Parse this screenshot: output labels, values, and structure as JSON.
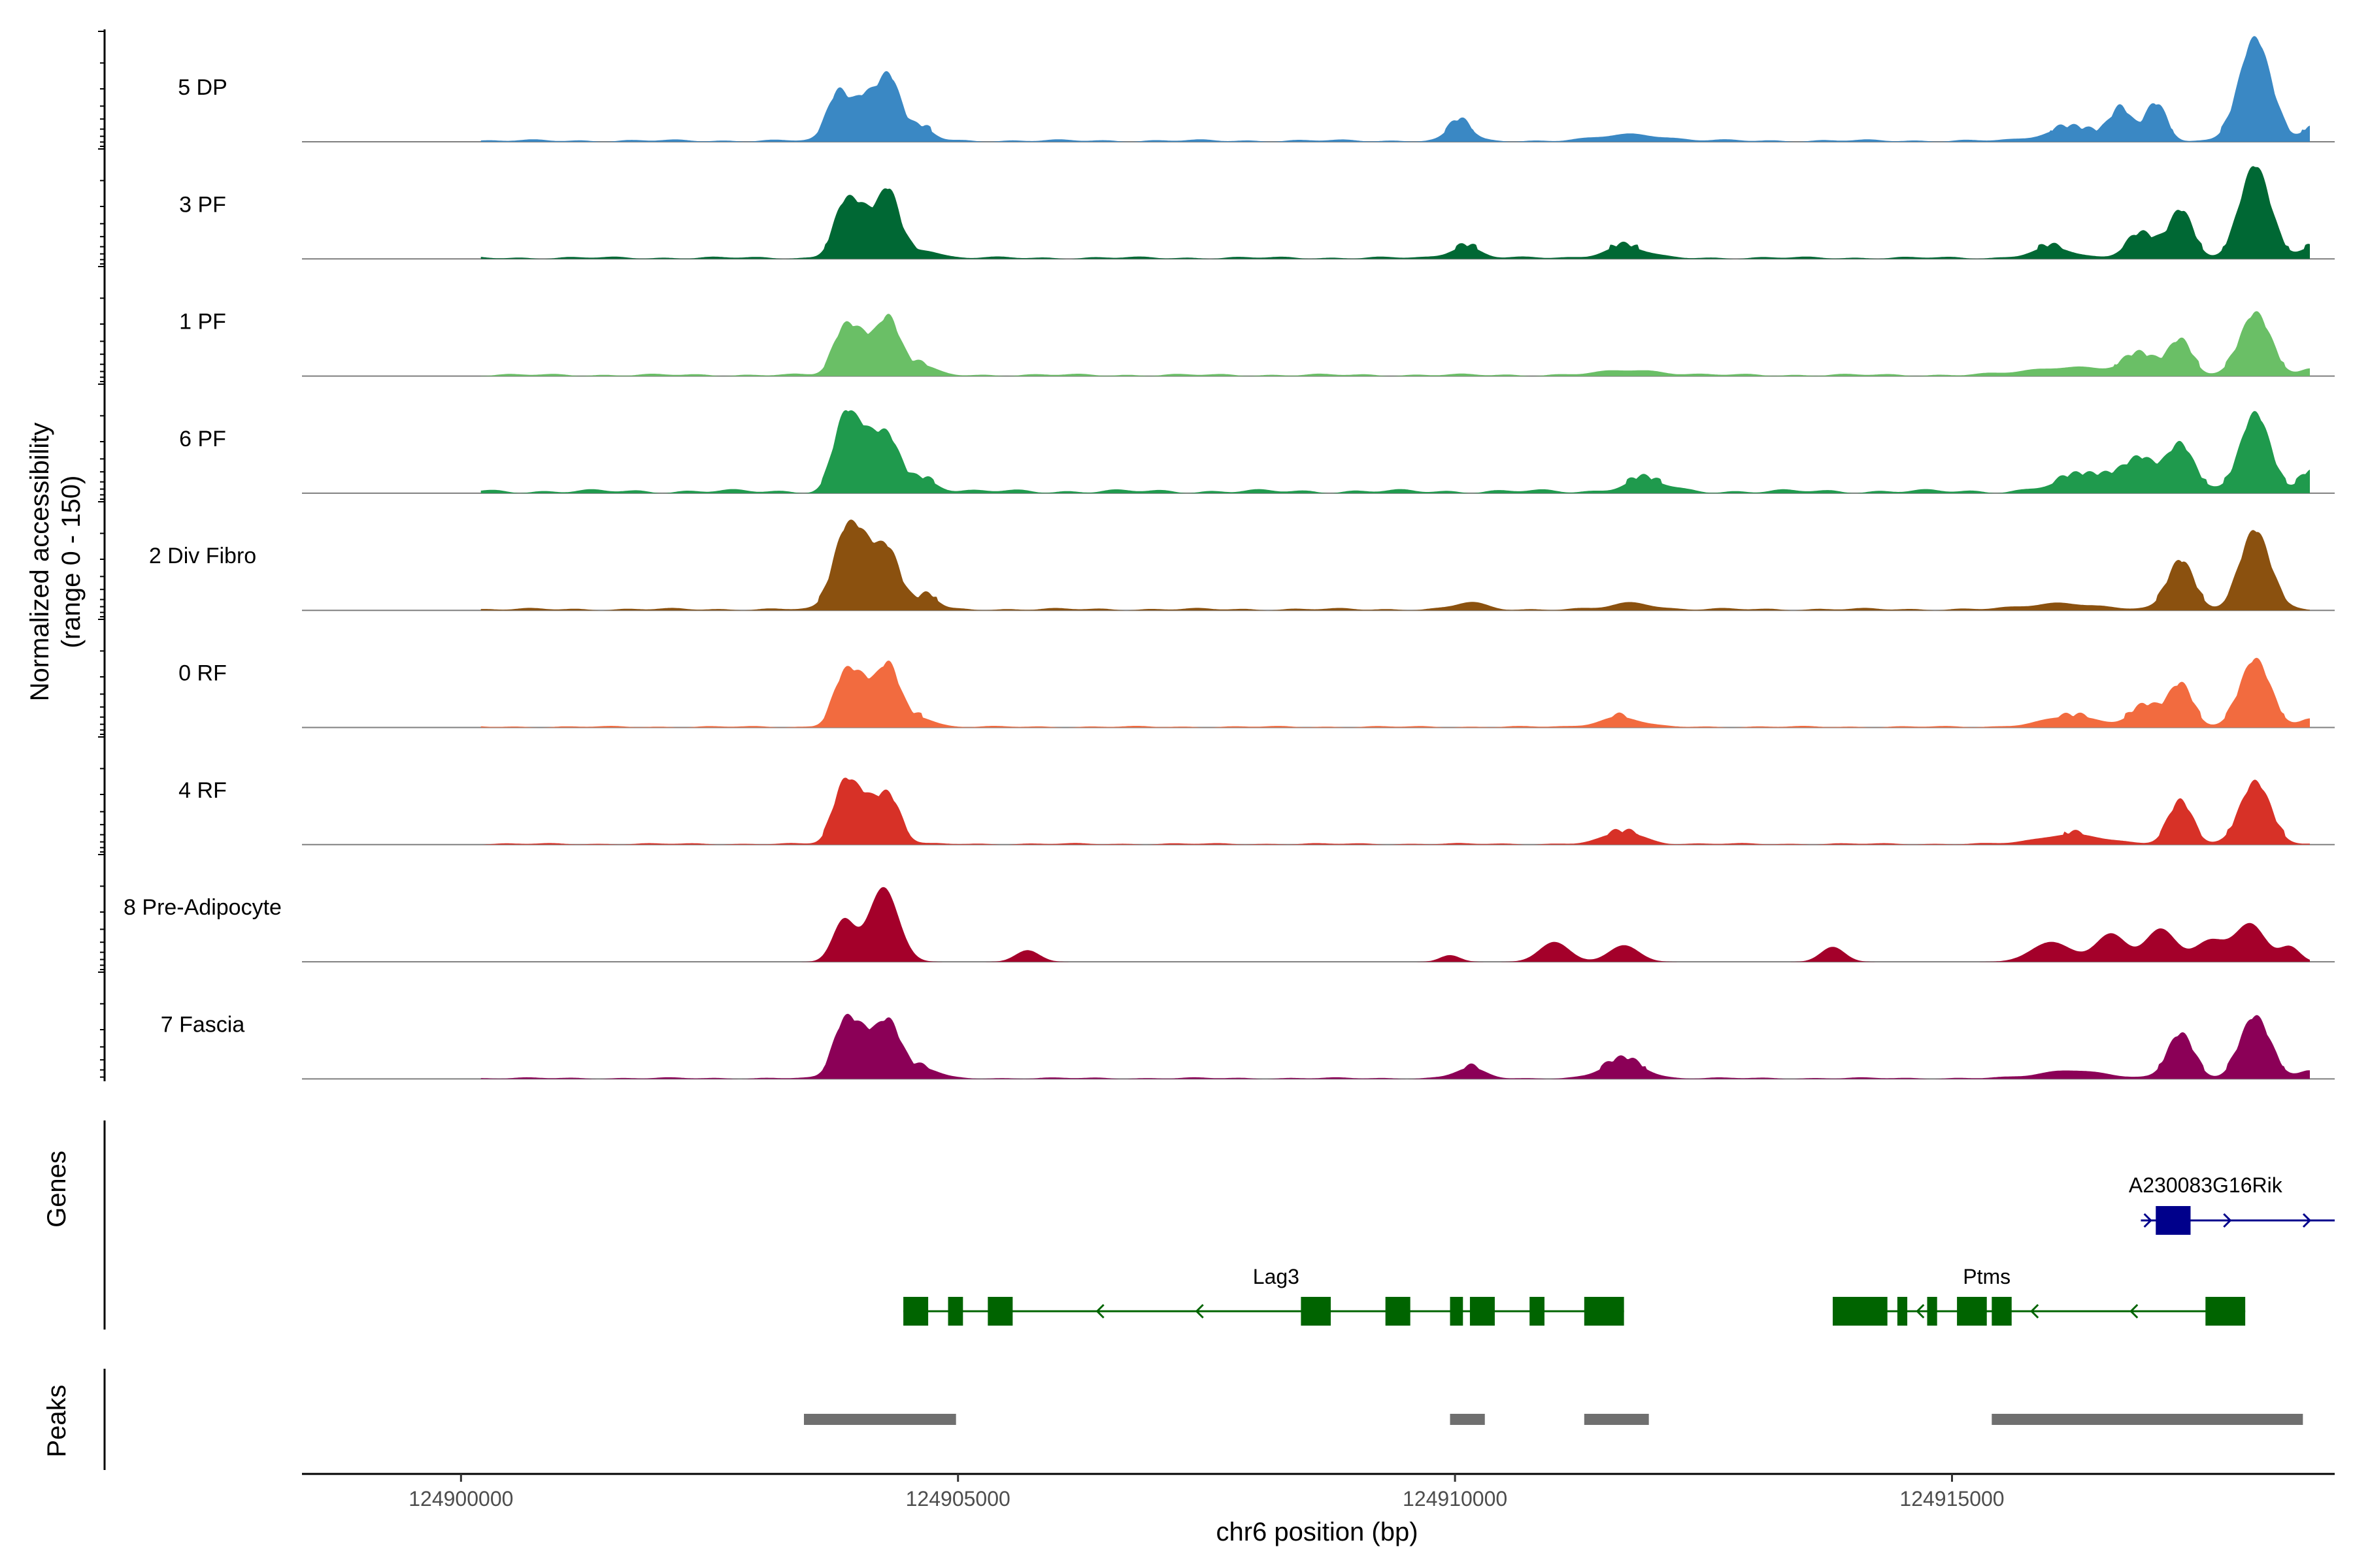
{
  "chart_data": {
    "type": "area",
    "title": "",
    "ylabel_line1": "Normalized accessibility",
    "ylabel_line2": "(range 0 - 150)",
    "xlabel": "chr6 position (bp)",
    "xlim": [
      124898400,
      124918850
    ],
    "ylim": [
      0,
      150
    ],
    "x_ticks": [
      124900000,
      124905000,
      124910000,
      124915000
    ],
    "x_tick_labels": [
      "124900000",
      "124905000",
      "124910000",
      "124915000"
    ],
    "genes_label": "Genes",
    "peaks_label": "Peaks",
    "tracks": [
      {
        "name": "5 DP",
        "color": "#3A88C4",
        "noise": 3,
        "peaks": [
          [
            124903800,
            58,
            110
          ],
          [
            124904050,
            42,
            100
          ],
          [
            124904300,
            78,
            120
          ],
          [
            124904650,
            14,
            110
          ],
          [
            124910050,
            24,
            110
          ],
          [
            124911800,
            8,
            300
          ],
          [
            124916200,
            16,
            250
          ],
          [
            124916700,
            36,
            100
          ],
          [
            124917050,
            42,
            110
          ],
          [
            124918050,
            120,
            160
          ],
          [
            124918600,
            14,
            80
          ]
        ]
      },
      {
        "name": "3 PF",
        "color": "#006834",
        "noise": 3,
        "peaks": [
          [
            124903850,
            58,
            110
          ],
          [
            124904050,
            44,
            110
          ],
          [
            124904300,
            78,
            110
          ],
          [
            124904650,
            10,
            150
          ],
          [
            124910100,
            14,
            150
          ],
          [
            124911700,
            14,
            200
          ],
          [
            124916000,
            12,
            200
          ],
          [
            124916900,
            28,
            150
          ],
          [
            124917300,
            54,
            120
          ],
          [
            124918050,
            110,
            150
          ],
          [
            124918600,
            12,
            100
          ]
        ]
      },
      {
        "name": "1 PF",
        "color": "#6ABF66",
        "noise": 3,
        "peaks": [
          [
            124903850,
            50,
            110
          ],
          [
            124904050,
            38,
            110
          ],
          [
            124904300,
            64,
            110
          ],
          [
            124904600,
            12,
            150
          ],
          [
            124911800,
            6,
            300
          ],
          [
            124916200,
            10,
            400
          ],
          [
            124916900,
            22,
            150
          ],
          [
            124917300,
            40,
            120
          ],
          [
            124918050,
            72,
            150
          ],
          [
            124918600,
            8,
            100
          ]
        ]
      },
      {
        "name": "6 PF",
        "color": "#1F9A4D",
        "noise": 5,
        "peaks": [
          [
            124903850,
            78,
            110
          ],
          [
            124904050,
            56,
            120
          ],
          [
            124904300,
            60,
            120
          ],
          [
            124904650,
            14,
            150
          ],
          [
            124911900,
            14,
            200
          ],
          [
            124916400,
            20,
            300
          ],
          [
            124916900,
            36,
            150
          ],
          [
            124917300,
            54,
            130
          ],
          [
            124918050,
            92,
            150
          ],
          [
            124918600,
            20,
            100
          ]
        ]
      },
      {
        "name": "2 Div Fibro",
        "color": "#8B510F",
        "noise": 3,
        "peaks": [
          [
            124903850,
            80,
            120
          ],
          [
            124904050,
            64,
            120
          ],
          [
            124904300,
            68,
            120
          ],
          [
            124904700,
            16,
            100
          ],
          [
            124910150,
            8,
            150
          ],
          [
            124911800,
            8,
            200
          ],
          [
            124916100,
            8,
            300
          ],
          [
            124917300,
            58,
            130
          ],
          [
            124918050,
            92,
            150
          ]
        ]
      },
      {
        "name": "0 RF",
        "color": "#F26B3F",
        "noise": 2,
        "peaks": [
          [
            124903850,
            56,
            110
          ],
          [
            124904050,
            44,
            110
          ],
          [
            124904300,
            70,
            110
          ],
          [
            124904600,
            12,
            150
          ],
          [
            124911650,
            12,
            200
          ],
          [
            124916200,
            12,
            300
          ],
          [
            124916950,
            24,
            150
          ],
          [
            124917300,
            48,
            120
          ],
          [
            124918050,
            80,
            150
          ],
          [
            124918600,
            10,
            100
          ]
        ]
      },
      {
        "name": "4 RF",
        "color": "#D73127",
        "noise": 2,
        "peaks": [
          [
            124903850,
            66,
            110
          ],
          [
            124904050,
            44,
            110
          ],
          [
            124904300,
            56,
            120
          ],
          [
            124911700,
            14,
            200
          ],
          [
            124916200,
            12,
            300
          ],
          [
            124917300,
            50,
            120
          ],
          [
            124918050,
            72,
            150
          ]
        ]
      },
      {
        "name": "8 Pre-Adipocyte",
        "color": "#A4002A",
        "noise": 0,
        "peaks": [
          [
            124903850,
            50,
            110
          ],
          [
            124904250,
            90,
            150
          ],
          [
            124905700,
            14,
            120
          ],
          [
            124909950,
            8,
            100
          ],
          [
            124911000,
            24,
            150
          ],
          [
            124911700,
            20,
            150
          ],
          [
            124913800,
            18,
            120
          ],
          [
            124916000,
            24,
            200
          ],
          [
            124916600,
            34,
            150
          ],
          [
            124917100,
            40,
            150
          ],
          [
            124917600,
            26,
            150
          ],
          [
            124918000,
            46,
            150
          ],
          [
            124918400,
            18,
            100
          ]
        ]
      },
      {
        "name": "7 Fascia",
        "color": "#8B0057",
        "noise": 2,
        "peaks": [
          [
            124903850,
            62,
            110
          ],
          [
            124904050,
            42,
            110
          ],
          [
            124904300,
            66,
            120
          ],
          [
            124904650,
            12,
            150
          ],
          [
            124910150,
            12,
            150
          ],
          [
            124911700,
            22,
            200
          ],
          [
            124916200,
            10,
            300
          ],
          [
            124917300,
            52,
            130
          ],
          [
            124918050,
            72,
            150
          ],
          [
            124918600,
            10,
            100
          ]
        ]
      }
    ],
    "genes": [
      {
        "name": "A230083G16Rik",
        "color": "#00008B",
        "strand": "+",
        "start": 124916900,
        "end": 124918850,
        "exons": [
          [
            124917050,
            124917400
          ]
        ],
        "arrows": [
          124917000,
          124917800,
          124918600
        ]
      },
      {
        "name": "Lag3",
        "color": "#006400",
        "strand": "-",
        "start": 124904450,
        "end": 124911700,
        "exons": [
          [
            124904450,
            124904700
          ],
          [
            124904900,
            124905050
          ],
          [
            124905300,
            124905550
          ],
          [
            124908450,
            124908750
          ],
          [
            124909300,
            124909550
          ],
          [
            124909950,
            124910080
          ],
          [
            124910150,
            124910400
          ],
          [
            124910750,
            124910900
          ],
          [
            124911300,
            124911700
          ]
        ],
        "arrows": [
          124906400,
          124907400,
          124910300
        ]
      },
      {
        "name": "Ptms",
        "color": "#006400",
        "strand": "-",
        "start": 124913800,
        "end": 124917950,
        "exons": [
          [
            124913800,
            124914350
          ],
          [
            124914450,
            124914550
          ],
          [
            124914750,
            124914850
          ],
          [
            124915050,
            124915350
          ],
          [
            124915400,
            124915600
          ],
          [
            124917550,
            124917950
          ]
        ],
        "arrows": [
          124914650,
          124915800,
          124916800
        ]
      }
    ],
    "peaks": [
      [
        124903450,
        124904980
      ],
      [
        124909950,
        124910300
      ],
      [
        124911300,
        124911950
      ],
      [
        124915400,
        124918530
      ]
    ]
  }
}
